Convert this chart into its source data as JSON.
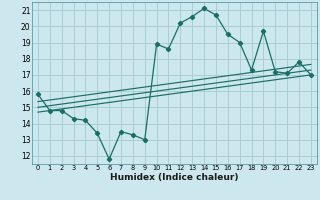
{
  "xlabel": "Humidex (Indice chaleur)",
  "bg_color": "#cce8ee",
  "grid_color": "#aacdd6",
  "line_color": "#1a6e65",
  "xlim": [
    -0.5,
    23.5
  ],
  "ylim": [
    11.5,
    21.5
  ],
  "xticks": [
    0,
    1,
    2,
    3,
    4,
    5,
    6,
    7,
    8,
    9,
    10,
    11,
    12,
    13,
    14,
    15,
    16,
    17,
    18,
    19,
    20,
    21,
    22,
    23
  ],
  "yticks": [
    12,
    13,
    14,
    15,
    16,
    17,
    18,
    19,
    20,
    21
  ],
  "main_line_x": [
    0,
    1,
    2,
    3,
    4,
    5,
    6,
    7,
    8,
    9,
    10,
    11,
    12,
    13,
    14,
    15,
    16,
    17,
    18,
    19,
    20,
    21,
    22,
    23
  ],
  "main_line_y": [
    15.8,
    14.8,
    14.8,
    14.3,
    14.2,
    13.4,
    11.8,
    13.5,
    13.3,
    13.0,
    18.9,
    18.6,
    20.2,
    20.6,
    21.1,
    20.7,
    19.5,
    19.0,
    17.3,
    19.7,
    17.2,
    17.1,
    17.8,
    17.0
  ],
  "reg_line1_x": [
    0,
    23
  ],
  "reg_line1_y": [
    14.7,
    17.0
  ],
  "reg_line2_x": [
    0,
    23
  ],
  "reg_line2_y": [
    15.0,
    17.3
  ],
  "reg_line3_x": [
    0,
    23
  ],
  "reg_line3_y": [
    15.35,
    17.65
  ]
}
